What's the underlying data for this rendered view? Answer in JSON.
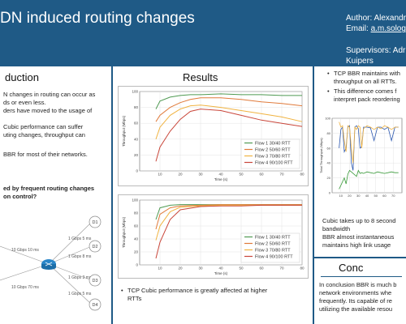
{
  "header": {
    "title": "DN induced routing changes",
    "author_line1": "Author: Alexandr",
    "email_label": "Email: ",
    "email_value": "a.m.solog",
    "supervisors_line1": "Supervisors: Adr",
    "supervisors_line2": "Kuipers"
  },
  "left": {
    "heading": "duction",
    "lines": [
      "N changes in routing can occur as",
      "ds or even less.",
      "ders have moved to the usage of",
      "Cubic performance can suffer",
      "uting changes, throughput can",
      "BBR for most of their networks."
    ],
    "question": [
      "ed by frequent routing changes",
      "on control?"
    ],
    "diagram": {
      "labels": [
        "10 Gbps 10 ms",
        "10 Gbps 70 ms",
        "1 Gbps 5 ms",
        "1 Gbps 8 ms",
        "1 Gbps 3 ms",
        "1 Gbps 5 ms"
      ],
      "nodes": [
        "D1",
        "D2",
        "D3",
        "D4"
      ]
    }
  },
  "mid": {
    "heading": "Results",
    "bullet": [
      "TCP Cubic performance is greatly affected at higher",
      "RTTs"
    ]
  },
  "right": {
    "bullets": [
      [
        "TCP BBR maintains with",
        "throughput on all RTTs."
      ],
      [
        "This difference comes f",
        "interpret pack reordering"
      ]
    ],
    "note": [
      "Cubic takes up to 8 second",
      "bandwidth",
      "BBR almost instantaneous",
      "maintains high link usage"
    ]
  },
  "conclusion": {
    "heading": "Conc",
    "lines": [
      "In conclusion BBR is much b",
      "network environments whe",
      "frequently. Its capable of re",
      "utilizing the available resou"
    ]
  },
  "chart_data": [
    {
      "type": "line",
      "xlabel": "Time (s)",
      "ylabel": "Throughput (Mbps)",
      "ylim": [
        0,
        100
      ],
      "xlim": [
        0,
        80
      ],
      "x_ticks": [
        10,
        20,
        30,
        40,
        50,
        60,
        70,
        80
      ],
      "y_ticks": [
        0,
        20,
        40,
        60,
        80,
        100
      ],
      "legend_position": "bottom-right",
      "series": [
        {
          "name": "Flow 1 30/40 RTT",
          "color": "#4f9a52",
          "x": [
            8,
            10,
            15,
            20,
            25,
            30,
            40,
            50,
            60,
            70,
            80
          ],
          "y": [
            78,
            88,
            93,
            95,
            96,
            96,
            97,
            96,
            96,
            95,
            95
          ]
        },
        {
          "name": "Flow 2 50/60 RTT",
          "color": "#e07a3a",
          "x": [
            8,
            10,
            15,
            20,
            25,
            30,
            40,
            50,
            60,
            70,
            80
          ],
          "y": [
            62,
            70,
            80,
            86,
            90,
            92,
            92,
            90,
            87,
            85,
            82
          ]
        },
        {
          "name": "Flow 3 70/80 RTT",
          "color": "#f0b341",
          "x": [
            8,
            10,
            15,
            20,
            25,
            30,
            40,
            50,
            60,
            70,
            80
          ],
          "y": [
            40,
            55,
            70,
            78,
            82,
            83,
            80,
            76,
            72,
            68,
            62
          ]
        },
        {
          "name": "Flow 4 90/100 RTT",
          "color": "#c9463a",
          "x": [
            8,
            10,
            15,
            20,
            25,
            30,
            40,
            50,
            60,
            70,
            80
          ],
          "y": [
            12,
            30,
            50,
            65,
            75,
            78,
            76,
            70,
            64,
            60,
            56
          ]
        }
      ]
    },
    {
      "type": "line",
      "xlabel": "Time (s)",
      "ylabel": "Throughput (Mbps)",
      "ylim": [
        0,
        100
      ],
      "xlim": [
        0,
        80
      ],
      "x_ticks": [
        10,
        20,
        30,
        40,
        50,
        60,
        70,
        80
      ],
      "y_ticks": [
        0,
        20,
        40,
        60,
        80,
        100
      ],
      "legend_position": "bottom-right",
      "series": [
        {
          "name": "Flow 1 30/40 RTT",
          "color": "#4f9a52",
          "x": [
            8,
            10,
            15,
            20,
            30,
            40,
            50,
            60,
            70,
            80
          ],
          "y": [
            70,
            88,
            92,
            93,
            93,
            93,
            93,
            93,
            93,
            93
          ]
        },
        {
          "name": "Flow 2 50/60 RTT",
          "color": "#e07a3a",
          "x": [
            8,
            10,
            15,
            20,
            30,
            40,
            50,
            60,
            70,
            80
          ],
          "y": [
            55,
            78,
            88,
            91,
            92,
            93,
            93,
            93,
            93,
            93
          ]
        },
        {
          "name": "Flow 3 70/80 RTT",
          "color": "#f0b341",
          "x": [
            8,
            10,
            15,
            20,
            30,
            40,
            50,
            60,
            70,
            80
          ],
          "y": [
            38,
            60,
            82,
            89,
            91,
            92,
            92,
            92,
            92,
            92
          ]
        },
        {
          "name": "Flow 4 90/100 RTT",
          "color": "#c9463a",
          "x": [
            8,
            10,
            15,
            20,
            30,
            40,
            50,
            60,
            70,
            80
          ],
          "y": [
            10,
            35,
            70,
            85,
            90,
            91,
            91,
            92,
            92,
            92
          ]
        }
      ]
    },
    {
      "type": "line",
      "ylabel": "Total Throughput (Mbps)",
      "ylim": [
        0,
        100
      ],
      "xlim": [
        0,
        80
      ],
      "x_ticks": [
        10,
        20,
        30,
        40,
        50,
        60,
        70
      ],
      "y_ticks": [
        0,
        20,
        40,
        60,
        80,
        100
      ],
      "series": [
        {
          "color": "#2c58b0",
          "x": [
            8,
            10,
            12,
            14,
            16,
            18,
            20,
            22,
            24,
            26,
            28,
            30,
            32,
            34,
            36,
            40,
            44,
            48,
            52,
            56,
            60,
            64,
            68,
            72,
            76
          ],
          "y": [
            60,
            85,
            88,
            55,
            60,
            88,
            90,
            40,
            30,
            88,
            90,
            86,
            60,
            62,
            88,
            88,
            87,
            70,
            88,
            88,
            85,
            88,
            70,
            88,
            88
          ]
        },
        {
          "color": "#f0b341",
          "x": [
            8,
            10,
            12,
            14,
            16,
            18,
            20,
            22,
            24,
            26,
            28,
            30,
            32,
            34,
            36,
            40,
            44,
            48,
            52,
            56,
            60,
            64,
            68,
            72,
            76
          ],
          "y": [
            95,
            88,
            90,
            70,
            55,
            90,
            88,
            60,
            40,
            88,
            85,
            90,
            88,
            60,
            86,
            90,
            88,
            85,
            88,
            86,
            90,
            88,
            85,
            88,
            88
          ]
        },
        {
          "color": "#3a9a3a",
          "x": [
            8,
            10,
            12,
            14,
            16,
            18,
            20,
            22,
            24,
            26,
            28,
            30,
            32,
            34,
            36,
            40,
            44,
            48,
            52,
            56,
            60,
            64,
            68,
            72,
            76
          ],
          "y": [
            5,
            10,
            15,
            20,
            12,
            25,
            30,
            28,
            26,
            24,
            22,
            30,
            26,
            27,
            26,
            28,
            27,
            26,
            28,
            27,
            26,
            27,
            28,
            27,
            27
          ]
        }
      ]
    }
  ]
}
